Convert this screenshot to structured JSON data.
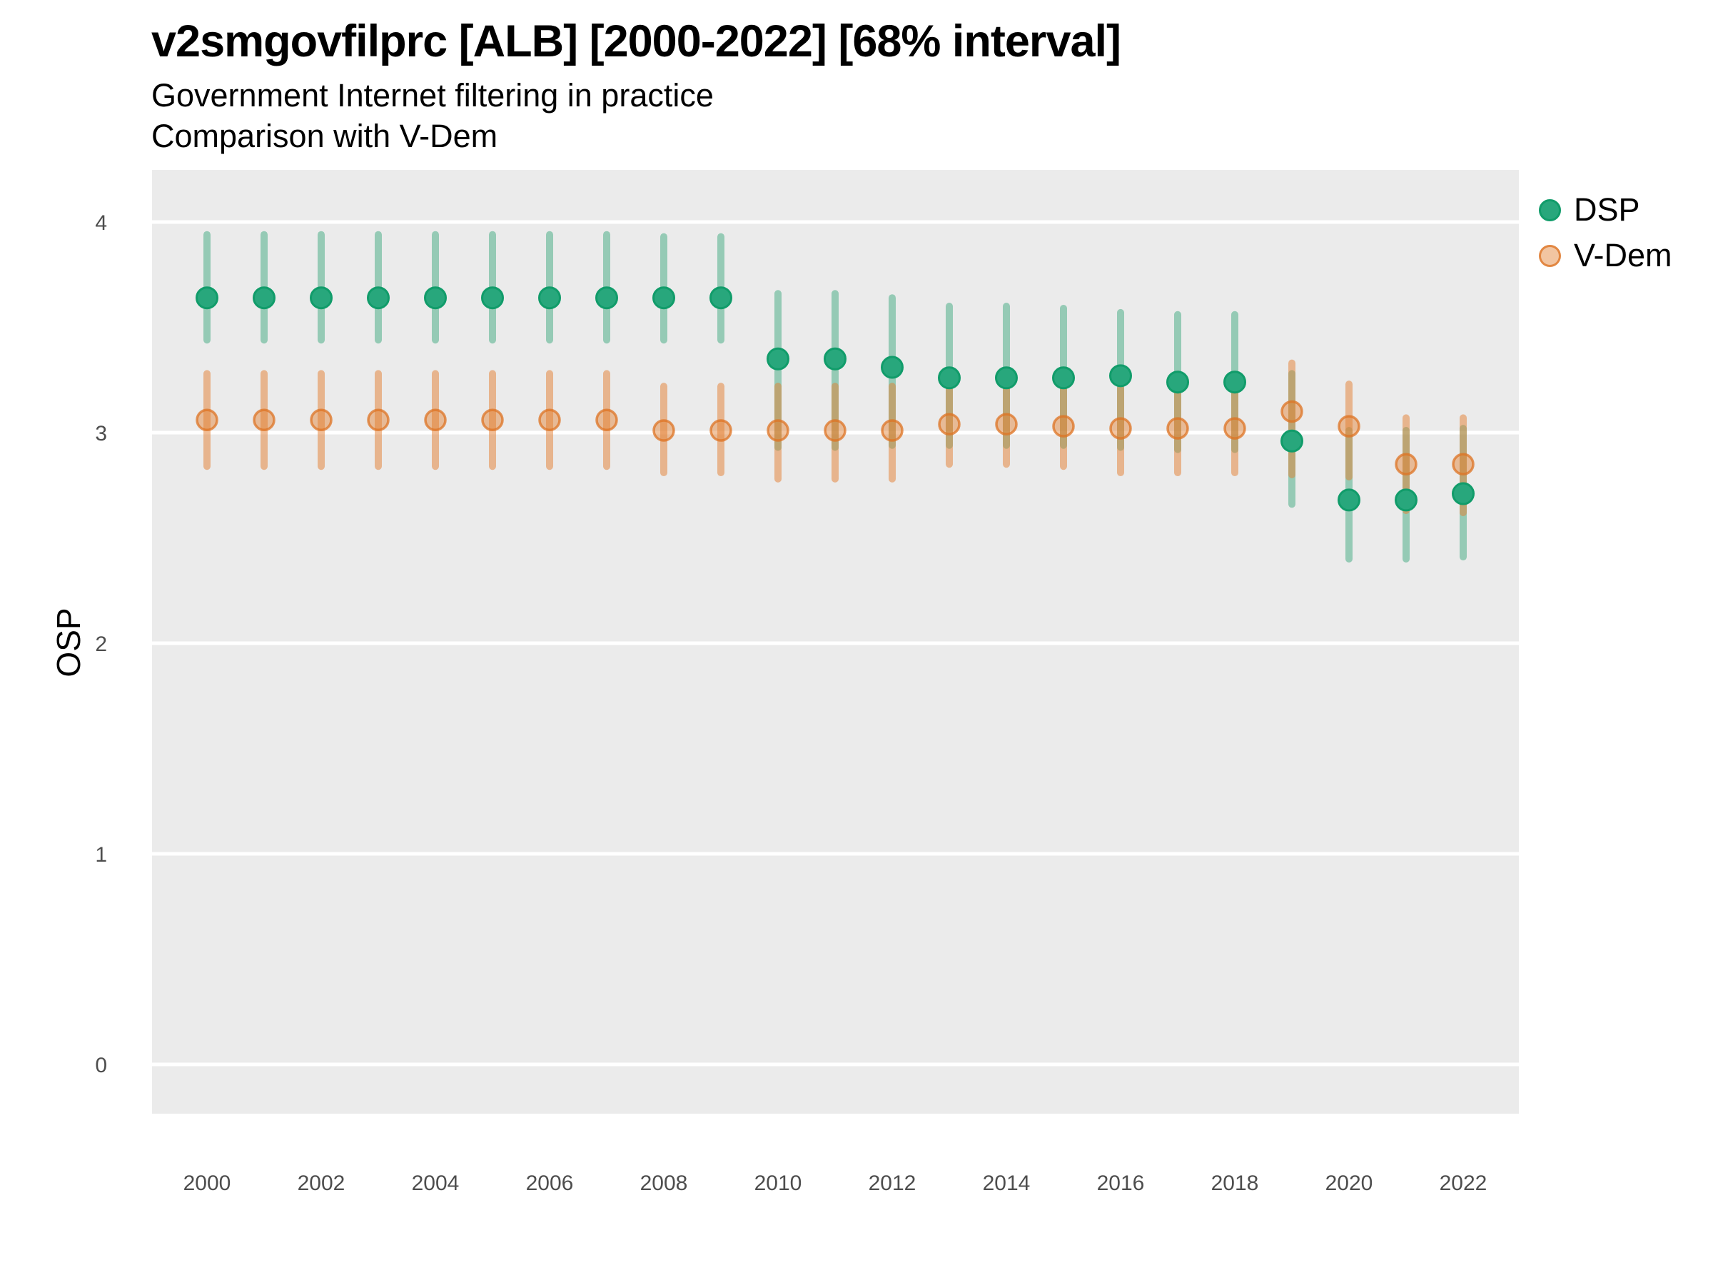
{
  "chart_data": {
    "type": "scatter",
    "title": "v2smgovfilprc [ALB] [2000-2022] [68% interval]",
    "subtitle1": "Government Internet filtering in practice",
    "subtitle2": "Comparison with V-Dem",
    "variable": "v2smgovfilprc",
    "country": "ALB",
    "interval": "68% interval",
    "xlabel": "",
    "ylabel": "OSP",
    "x_ticks": [
      2000,
      2002,
      2004,
      2006,
      2008,
      2010,
      2012,
      2014,
      2016,
      2018,
      2020,
      2022
    ],
    "y_ticks": [
      0,
      1,
      2,
      3,
      4
    ],
    "xlim": [
      1999,
      2023
    ],
    "ylim": [
      -0.25,
      4.25
    ],
    "grid": "major-horizontal-white",
    "legend_position": "right",
    "colors": {
      "plot_bg": "#ebebeb",
      "grid": "#ffffff",
      "tick_text": "#4d4d4d",
      "title_text": "#000000",
      "dsp_green": "#28a77c",
      "vdem_orange": "#e07e2f"
    },
    "series": [
      {
        "id": "dsp",
        "name": "DSP",
        "point_fill": "#28a77c",
        "point_stroke": "#119c6a",
        "bar_color": "rgba(31,158,107,0.42)",
        "points": [
          {
            "year": 2000,
            "value": 3.64,
            "lo": 3.44,
            "hi": 3.94
          },
          {
            "year": 2001,
            "value": 3.64,
            "lo": 3.44,
            "hi": 3.94
          },
          {
            "year": 2002,
            "value": 3.64,
            "lo": 3.44,
            "hi": 3.94
          },
          {
            "year": 2003,
            "value": 3.64,
            "lo": 3.44,
            "hi": 3.94
          },
          {
            "year": 2004,
            "value": 3.64,
            "lo": 3.44,
            "hi": 3.94
          },
          {
            "year": 2005,
            "value": 3.64,
            "lo": 3.44,
            "hi": 3.94
          },
          {
            "year": 2006,
            "value": 3.64,
            "lo": 3.44,
            "hi": 3.94
          },
          {
            "year": 2007,
            "value": 3.64,
            "lo": 3.44,
            "hi": 3.94
          },
          {
            "year": 2008,
            "value": 3.64,
            "lo": 3.44,
            "hi": 3.93
          },
          {
            "year": 2009,
            "value": 3.64,
            "lo": 3.44,
            "hi": 3.93
          },
          {
            "year": 2010,
            "value": 3.35,
            "lo": 2.93,
            "hi": 3.66
          },
          {
            "year": 2011,
            "value": 3.35,
            "lo": 2.93,
            "hi": 3.66
          },
          {
            "year": 2012,
            "value": 3.31,
            "lo": 2.94,
            "hi": 3.64
          },
          {
            "year": 2013,
            "value": 3.26,
            "lo": 2.94,
            "hi": 3.6
          },
          {
            "year": 2014,
            "value": 3.26,
            "lo": 2.94,
            "hi": 3.6
          },
          {
            "year": 2015,
            "value": 3.26,
            "lo": 2.94,
            "hi": 3.59
          },
          {
            "year": 2016,
            "value": 3.27,
            "lo": 2.93,
            "hi": 3.57
          },
          {
            "year": 2017,
            "value": 3.24,
            "lo": 2.92,
            "hi": 3.56
          },
          {
            "year": 2018,
            "value": 3.24,
            "lo": 2.92,
            "hi": 3.56
          },
          {
            "year": 2019,
            "value": 2.96,
            "lo": 2.66,
            "hi": 3.28
          },
          {
            "year": 2020,
            "value": 2.68,
            "lo": 2.4,
            "hi": 3.01
          },
          {
            "year": 2021,
            "value": 2.68,
            "lo": 2.4,
            "hi": 3.01
          },
          {
            "year": 2022,
            "value": 2.71,
            "lo": 2.41,
            "hi": 3.02
          }
        ]
      },
      {
        "id": "vdem",
        "name": "V-Dem",
        "point_fill": "rgba(227,126,47,0.45)",
        "point_stroke": "rgba(222,115,35,0.75)",
        "bar_color": "rgba(227,126,47,0.5)",
        "points": [
          {
            "year": 2000,
            "value": 3.06,
            "lo": 2.84,
            "hi": 3.28
          },
          {
            "year": 2001,
            "value": 3.06,
            "lo": 2.84,
            "hi": 3.28
          },
          {
            "year": 2002,
            "value": 3.06,
            "lo": 2.84,
            "hi": 3.28
          },
          {
            "year": 2003,
            "value": 3.06,
            "lo": 2.84,
            "hi": 3.28
          },
          {
            "year": 2004,
            "value": 3.06,
            "lo": 2.84,
            "hi": 3.28
          },
          {
            "year": 2005,
            "value": 3.06,
            "lo": 2.84,
            "hi": 3.28
          },
          {
            "year": 2006,
            "value": 3.06,
            "lo": 2.84,
            "hi": 3.28
          },
          {
            "year": 2007,
            "value": 3.06,
            "lo": 2.84,
            "hi": 3.28
          },
          {
            "year": 2008,
            "value": 3.01,
            "lo": 2.81,
            "hi": 3.22
          },
          {
            "year": 2009,
            "value": 3.01,
            "lo": 2.81,
            "hi": 3.22
          },
          {
            "year": 2010,
            "value": 3.01,
            "lo": 2.78,
            "hi": 3.22
          },
          {
            "year": 2011,
            "value": 3.01,
            "lo": 2.78,
            "hi": 3.22
          },
          {
            "year": 2012,
            "value": 3.01,
            "lo": 2.78,
            "hi": 3.22
          },
          {
            "year": 2013,
            "value": 3.04,
            "lo": 2.85,
            "hi": 3.23
          },
          {
            "year": 2014,
            "value": 3.04,
            "lo": 2.85,
            "hi": 3.23
          },
          {
            "year": 2015,
            "value": 3.03,
            "lo": 2.84,
            "hi": 3.22
          },
          {
            "year": 2016,
            "value": 3.02,
            "lo": 2.81,
            "hi": 3.21
          },
          {
            "year": 2017,
            "value": 3.02,
            "lo": 2.81,
            "hi": 3.21
          },
          {
            "year": 2018,
            "value": 3.02,
            "lo": 2.81,
            "hi": 3.21
          },
          {
            "year": 2019,
            "value": 3.1,
            "lo": 2.8,
            "hi": 3.33
          },
          {
            "year": 2020,
            "value": 3.03,
            "lo": 2.79,
            "hi": 3.23
          },
          {
            "year": 2021,
            "value": 2.85,
            "lo": 2.63,
            "hi": 3.07
          },
          {
            "year": 2022,
            "value": 2.85,
            "lo": 2.62,
            "hi": 3.07
          }
        ]
      }
    ]
  }
}
